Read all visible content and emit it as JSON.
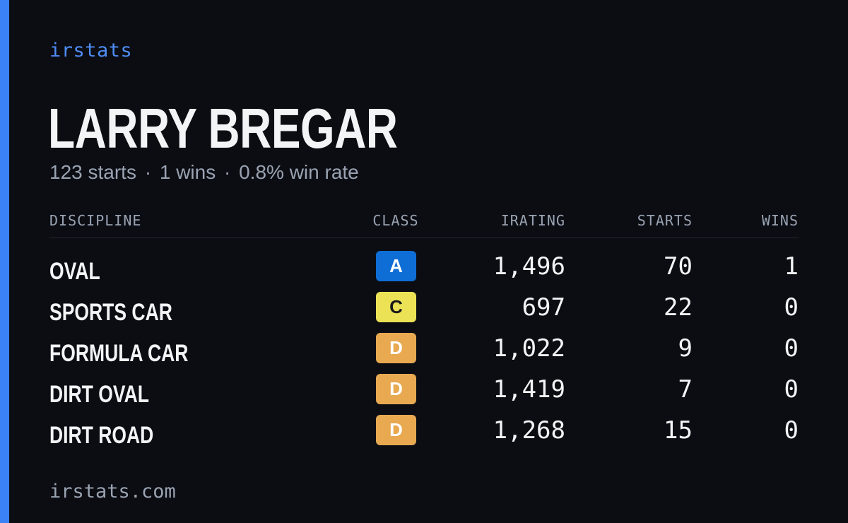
{
  "brand": "irstats",
  "driver": {
    "name": "LARRY BREGAR",
    "starts": "123 starts",
    "wins": "1 wins",
    "win_rate": "0.8% win rate",
    "separator": "·"
  },
  "table": {
    "headers": {
      "discipline": "DISCIPLINE",
      "class": "CLASS",
      "irating": "IRATING",
      "starts": "STARTS",
      "wins": "WINS"
    },
    "rows": [
      {
        "discipline": "OVAL",
        "class": "A",
        "irating": "1,496",
        "starts": "70",
        "wins": "1"
      },
      {
        "discipline": "SPORTS CAR",
        "class": "C",
        "irating": "697",
        "starts": "22",
        "wins": "0"
      },
      {
        "discipline": "FORMULA CAR",
        "class": "D",
        "irating": "1,022",
        "starts": "9",
        "wins": "0"
      },
      {
        "discipline": "DIRT OVAL",
        "class": "D",
        "irating": "1,419",
        "starts": "7",
        "wins": "0"
      },
      {
        "discipline": "DIRT ROAD",
        "class": "D",
        "irating": "1,268",
        "starts": "15",
        "wins": "0"
      }
    ]
  },
  "footer": "irstats.com",
  "colors": {
    "accent": "#3b82f6",
    "background": "#0b0d13",
    "class_A": "#0f6ed6",
    "class_C": "#ebe255",
    "class_D": "#e8a951"
  }
}
